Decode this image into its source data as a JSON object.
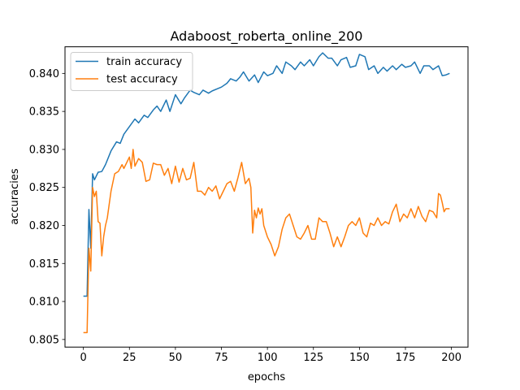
{
  "chart_data": {
    "type": "line",
    "title": "Adaboost_roberta_online_200",
    "xlabel": "epochs",
    "ylabel": "accuracies",
    "xlim": [
      -10,
      209
    ],
    "ylim": [
      0.804,
      0.8435
    ],
    "xticks": [
      0,
      25,
      50,
      75,
      100,
      125,
      150,
      175,
      200
    ],
    "yticks": [
      0.805,
      0.81,
      0.815,
      0.82,
      0.825,
      0.83,
      0.835,
      0.84
    ],
    "ytick_labels": [
      "0.805",
      "0.810",
      "0.815",
      "0.820",
      "0.825",
      "0.830",
      "0.835",
      "0.840"
    ],
    "grid": false,
    "legend_position": "upper left",
    "series": [
      {
        "name": "train accuracy",
        "color": "#1f77b4",
        "x": [
          0,
          2,
          3,
          4,
          5,
          6,
          8,
          10,
          12,
          15,
          18,
          20,
          22,
          25,
          28,
          30,
          33,
          35,
          38,
          40,
          42,
          45,
          47,
          50,
          53,
          55,
          58,
          60,
          63,
          65,
          68,
          70,
          73,
          75,
          78,
          80,
          83,
          85,
          87,
          90,
          93,
          95,
          98,
          100,
          103,
          105,
          108,
          110,
          113,
          115,
          118,
          120,
          123,
          125,
          128,
          130,
          133,
          135,
          138,
          140,
          143,
          145,
          148,
          150,
          153,
          155,
          158,
          160,
          163,
          165,
          168,
          170,
          173,
          175,
          178,
          180,
          183,
          185,
          188,
          190,
          193,
          195,
          197,
          199
        ],
        "y": [
          0.8107,
          0.8107,
          0.8221,
          0.817,
          0.8268,
          0.826,
          0.827,
          0.8271,
          0.828,
          0.8298,
          0.831,
          0.8308,
          0.832,
          0.833,
          0.834,
          0.8335,
          0.8345,
          0.8342,
          0.8352,
          0.8357,
          0.835,
          0.8365,
          0.835,
          0.8372,
          0.836,
          0.8368,
          0.8378,
          0.8375,
          0.8372,
          0.8378,
          0.8374,
          0.8377,
          0.838,
          0.8382,
          0.8387,
          0.8393,
          0.839,
          0.8395,
          0.8402,
          0.839,
          0.8398,
          0.8388,
          0.8402,
          0.8397,
          0.84,
          0.841,
          0.84,
          0.8415,
          0.841,
          0.8405,
          0.8415,
          0.841,
          0.8418,
          0.841,
          0.8422,
          0.8427,
          0.842,
          0.842,
          0.841,
          0.8418,
          0.8421,
          0.8408,
          0.841,
          0.8425,
          0.8422,
          0.8405,
          0.841,
          0.84,
          0.8408,
          0.8403,
          0.841,
          0.8405,
          0.8412,
          0.8408,
          0.841,
          0.8415,
          0.84,
          0.841,
          0.841,
          0.8405,
          0.841,
          0.8397,
          0.8398,
          0.84
        ]
      },
      {
        "name": "test accuracy",
        "color": "#ff7f0e",
        "x": [
          0,
          2,
          3,
          4,
          5,
          6,
          7,
          8,
          9,
          10,
          11,
          12,
          13,
          15,
          17,
          19,
          21,
          22,
          23,
          25,
          26,
          27,
          28,
          30,
          32,
          34,
          36,
          38,
          40,
          42,
          44,
          46,
          48,
          50,
          52,
          54,
          56,
          58,
          60,
          62,
          64,
          66,
          68,
          70,
          72,
          74,
          76,
          78,
          80,
          82,
          84,
          86,
          88,
          90,
          91,
          92,
          93,
          94,
          95,
          96,
          97,
          98,
          100,
          102,
          104,
          106,
          108,
          110,
          112,
          114,
          116,
          118,
          120,
          122,
          124,
          126,
          128,
          130,
          132,
          134,
          136,
          138,
          140,
          142,
          144,
          146,
          148,
          150,
          152,
          154,
          156,
          158,
          160,
          162,
          164,
          166,
          168,
          170,
          172,
          174,
          176,
          178,
          180,
          182,
          184,
          186,
          188,
          190,
          192,
          193,
          194,
          195,
          196,
          197,
          199
        ],
        "y": [
          0.8059,
          0.8059,
          0.817,
          0.814,
          0.825,
          0.8238,
          0.8245,
          0.8205,
          0.8203,
          0.816,
          0.8185,
          0.82,
          0.821,
          0.8245,
          0.8268,
          0.8271,
          0.828,
          0.8275,
          0.828,
          0.829,
          0.8275,
          0.83,
          0.8278,
          0.8288,
          0.8283,
          0.8258,
          0.826,
          0.8282,
          0.828,
          0.828,
          0.8266,
          0.8275,
          0.8255,
          0.8278,
          0.8257,
          0.8275,
          0.826,
          0.8262,
          0.8283,
          0.8245,
          0.8245,
          0.824,
          0.825,
          0.8245,
          0.8252,
          0.8235,
          0.8245,
          0.8255,
          0.8258,
          0.8245,
          0.8263,
          0.8283,
          0.8255,
          0.8262,
          0.825,
          0.819,
          0.822,
          0.821,
          0.8223,
          0.8215,
          0.8222,
          0.82,
          0.8185,
          0.8175,
          0.816,
          0.8172,
          0.8195,
          0.821,
          0.8215,
          0.82,
          0.8185,
          0.8182,
          0.819,
          0.82,
          0.8182,
          0.8182,
          0.821,
          0.8205,
          0.8205,
          0.819,
          0.8172,
          0.8185,
          0.8172,
          0.8185,
          0.82,
          0.8205,
          0.82,
          0.821,
          0.819,
          0.8185,
          0.8203,
          0.82,
          0.821,
          0.82,
          0.8205,
          0.8202,
          0.8218,
          0.8228,
          0.8205,
          0.8215,
          0.821,
          0.8222,
          0.821,
          0.8225,
          0.8212,
          0.8205,
          0.822,
          0.8218,
          0.821,
          0.8242,
          0.824,
          0.823,
          0.8218,
          0.8222,
          0.8222
        ]
      }
    ]
  }
}
